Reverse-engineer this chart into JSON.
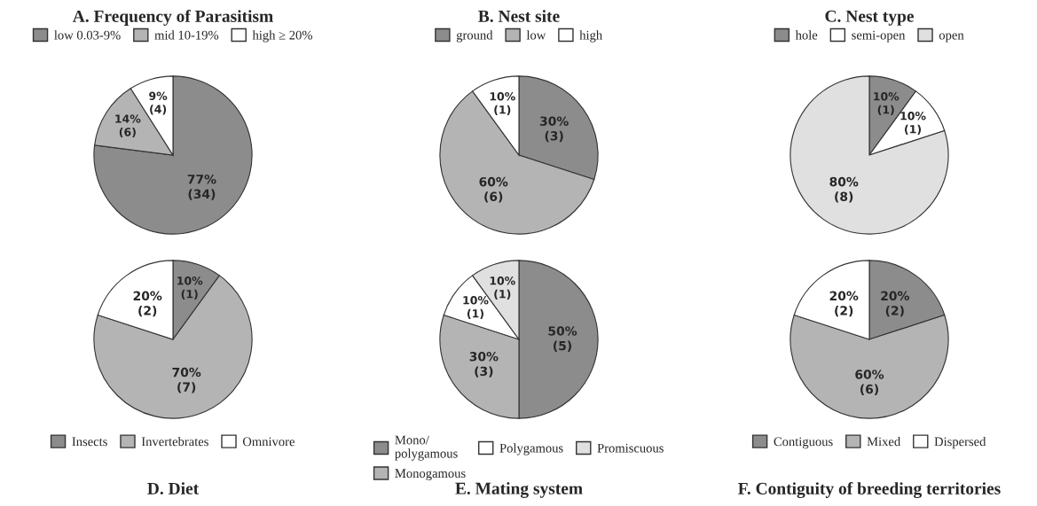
{
  "chart_data": [
    {
      "type": "pie",
      "title": "A. Frequency of Parasitism",
      "legend": "top",
      "categories": [
        "low 0.03-9%",
        "mid 10-19%",
        "high ≥ 20%"
      ],
      "values": [
        77,
        14,
        9
      ],
      "colors": [
        "#8c8c8c",
        "#b4b4b4",
        "#ffffff"
      ],
      "value_labels": [
        "77%\n(34)",
        "14%\n(6)",
        "9%\n(4)"
      ]
    },
    {
      "type": "pie",
      "title": "B. Nest site",
      "legend": "top",
      "categories": [
        "ground",
        "low",
        "high"
      ],
      "values": [
        30,
        60,
        10
      ],
      "colors": [
        "#8c8c8c",
        "#b4b4b4",
        "#ffffff"
      ],
      "value_labels": [
        "30%\n(3)",
        "60%\n(6)",
        "10%\n(1)"
      ]
    },
    {
      "type": "pie",
      "title": "C. Nest type",
      "legend": "top",
      "categories": [
        "hole",
        "semi-open",
        "open"
      ],
      "values": [
        10,
        10,
        80
      ],
      "colors": [
        "#8c8c8c",
        "#ffffff",
        "#e0e0e0"
      ],
      "value_labels": [
        "10%\n(1)",
        "10%\n(1)",
        "80%\n(8)"
      ]
    },
    {
      "type": "pie",
      "title": "D. Diet",
      "legend": "bottom",
      "categories": [
        "Insects",
        "Invertebrates",
        "Omnivore"
      ],
      "values": [
        10,
        70,
        20
      ],
      "colors": [
        "#8c8c8c",
        "#b4b4b4",
        "#ffffff"
      ],
      "value_labels": [
        "10%\n(1)",
        "70%\n(7)",
        "20%\n(2)"
      ]
    },
    {
      "type": "pie",
      "title": "E. Mating system",
      "legend": "bottom",
      "categories": [
        "Mono/\npolygamous",
        "Monogamous",
        "Polygamous",
        "Promiscuous"
      ],
      "values": [
        50,
        30,
        10,
        10
      ],
      "colors": [
        "#8c8c8c",
        "#b4b4b4",
        "#ffffff",
        "#e0e0e0"
      ],
      "value_labels": [
        "50%\n(5)",
        "30%\n(3)",
        "10%\n(1)",
        "10%\n(1)"
      ]
    },
    {
      "type": "pie",
      "title": "F. Contiguity of breeding territories",
      "legend": "bottom",
      "categories": [
        "Contiguous",
        "Mixed",
        "Dispersed"
      ],
      "values": [
        20,
        60,
        20
      ],
      "colors": [
        "#8c8c8c",
        "#b4b4b4",
        "#ffffff"
      ],
      "value_labels": [
        "20%\n(2)",
        "60%\n(6)",
        "20%\n(2)"
      ]
    }
  ]
}
